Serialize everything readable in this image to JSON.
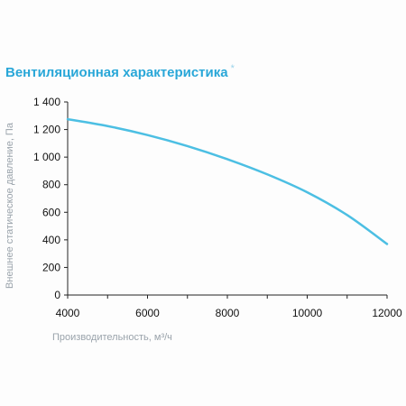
{
  "header": {
    "title": "Вентиляционная характеристика",
    "title_mark": "*"
  },
  "colors": {
    "title": "#29a7d8",
    "curve": "#4cbfe3",
    "axis": "#222222",
    "axis_label": "#9aa3ab"
  },
  "chart_data": {
    "type": "line",
    "title": "Вентиляционная характеристика *",
    "xlabel": "Производительность, м³/ч",
    "ylabel": "Внешнее статическое давление, Па",
    "xlim": [
      4000,
      12000
    ],
    "ylim": [
      0,
      1400
    ],
    "x_ticks": [
      "4000",
      "6000",
      "8000",
      "10000",
      "12000"
    ],
    "y_ticks": [
      "0",
      "200",
      "400",
      "600",
      "800",
      "1 000",
      "1 200",
      "1 400"
    ],
    "grid": false,
    "series": [
      {
        "x": [
          4000,
          5000,
          6000,
          7000,
          8000,
          9000,
          10000,
          11000,
          12000
        ],
        "y": [
          1275,
          1225,
          1160,
          1080,
          985,
          875,
          745,
          580,
          370
        ]
      }
    ]
  }
}
